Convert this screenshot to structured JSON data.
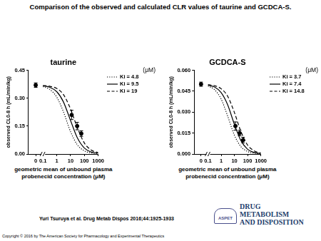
{
  "title": "Comparison of the observed and calculated CLR values of taurine and GCDCA-S.",
  "chart_data": [
    {
      "type": "scatter",
      "title": "taurine",
      "y_label": "observed CL0-8 h (mL/min/kg)",
      "x_label": [
        "geometric mean of unbound plasma",
        "probenecid concentration (μM)"
      ],
      "log": "x",
      "xlim": [
        0.1,
        1000
      ],
      "xticks": [
        0.1,
        1,
        10,
        100,
        1000
      ],
      "x2lim": [
        -1,
        1
      ],
      "x2ticks": [
        0
      ],
      "ylim": [
        0,
        0.45
      ],
      "yticks": [
        {
          "value": 0,
          "label": "0.00"
        },
        0.15,
        {
          "value": 0.3,
          "label": "0.30"
        },
        0.45
      ],
      "grid": false,
      "legend": "upper right",
      "legend_title": "(μM)",
      "series": [
        {
          "axis": "x2",
          "marker": "circle",
          "color": "#000000",
          "x": [
            0
          ],
          "values": [
            0.37
          ],
          "errors": [
            0.012
          ]
        },
        {
          "marker": "circle",
          "color": "#000000",
          "x": [
            12,
            30,
            60
          ],
          "values": [
            0.21,
            0.15,
            0.11
          ],
          "errors": [
            0.025,
            0.02,
            0.015
          ]
        },
        {
          "name": "Ki = 4.8",
          "type": "line",
          "line_style": "dotted",
          "color": "#000000",
          "x": [
            0.1,
            0.3,
            1,
            3,
            10,
            30,
            100,
            300,
            1000
          ],
          "values": [
            0.362,
            0.348,
            0.306,
            0.228,
            0.12,
            0.051,
            0.017,
            0.006,
            0.002
          ]
        },
        {
          "name": "Ki = 9.5",
          "type": "line",
          "line_style": "solid",
          "color": "#000000",
          "x": [
            0.1,
            0.3,
            1,
            3,
            10,
            30,
            100,
            300,
            1000
          ],
          "values": [
            0.366,
            0.359,
            0.335,
            0.281,
            0.18,
            0.089,
            0.032,
            0.011,
            0.004
          ]
        },
        {
          "name": "Ki = 19",
          "type": "line",
          "line_style": "dashed",
          "color": "#000000",
          "x": [
            0.1,
            0.3,
            1,
            3,
            10,
            30,
            100,
            300,
            1000
          ],
          "values": [
            0.368,
            0.364,
            0.352,
            0.32,
            0.242,
            0.144,
            0.059,
            0.022,
            0.007
          ]
        }
      ]
    },
    {
      "type": "scatter",
      "title": "GCDCA-S",
      "y_label": "observed CL0-8 h (mL/min/kg)",
      "x_label": [
        "geometric mean of unbound plasma",
        "probenecid concentration (μM)"
      ],
      "log": "x",
      "xlim": [
        0.1,
        1000
      ],
      "xticks": [
        0.1,
        1,
        10,
        100,
        1000
      ],
      "x2lim": [
        -1,
        1
      ],
      "x2ticks": [
        0
      ],
      "ylim": [
        0,
        0.06
      ],
      "yticks": [
        {
          "value": 0,
          "label": "0.000"
        },
        0.015,
        {
          "value": 0.03,
          "label": "0.030"
        },
        0.045,
        {
          "value": 0.06,
          "label": "0.060"
        }
      ],
      "grid": false,
      "legend": "upper right",
      "legend_title": "(μM)",
      "series": [
        {
          "axis": "x2",
          "marker": "circle",
          "color": "#000000",
          "x": [
            0
          ],
          "values": [
            0.05
          ],
          "errors": [
            0.0015
          ]
        },
        {
          "marker": "circle",
          "color": "#000000",
          "x": [
            12,
            25,
            45
          ],
          "values": [
            0.02,
            0.015,
            0.01
          ],
          "errors": [
            0.003,
            0.002,
            0.002
          ]
        },
        {
          "name": "Ki = 3.7",
          "type": "line",
          "line_style": "dotted",
          "color": "#000000",
          "x": [
            0.1,
            0.3,
            1,
            3,
            10,
            30,
            100,
            300,
            1000
          ],
          "values": [
            0.0487,
            0.0463,
            0.0394,
            0.0276,
            0.0135,
            0.0055,
            0.0018,
            0.0006,
            0.0002
          ]
        },
        {
          "name": "Ki = 7.4",
          "type": "line",
          "line_style": "solid",
          "color": "#000000",
          "x": [
            0.1,
            0.3,
            1,
            3,
            10,
            30,
            100,
            300,
            1000
          ],
          "values": [
            0.0493,
            0.0481,
            0.044,
            0.0356,
            0.0213,
            0.0099,
            0.0034,
            0.0012,
            0.0004
          ]
        },
        {
          "name": "Ki = 14.8",
          "type": "line",
          "line_style": "dashed",
          "color": "#000000",
          "x": [
            0.1,
            0.3,
            1,
            3,
            10,
            30,
            100,
            300,
            1000
          ],
          "values": [
            0.0497,
            0.049,
            0.0468,
            0.0416,
            0.0298,
            0.0165,
            0.0064,
            0.0024,
            0.0007
          ]
        }
      ]
    }
  ],
  "citation": "Yuri Tsuruya et al. Drug Metab Dispos 2016;44:1925-1933",
  "journal_logo": {
    "badge": "ASPET",
    "lines": [
      "DRUG",
      "METABOLISM",
      "AND DISPOSITION"
    ]
  },
  "copyright": "Copyright © 2016 by The American Society for Pharmacology and Experimental Therapeutics"
}
